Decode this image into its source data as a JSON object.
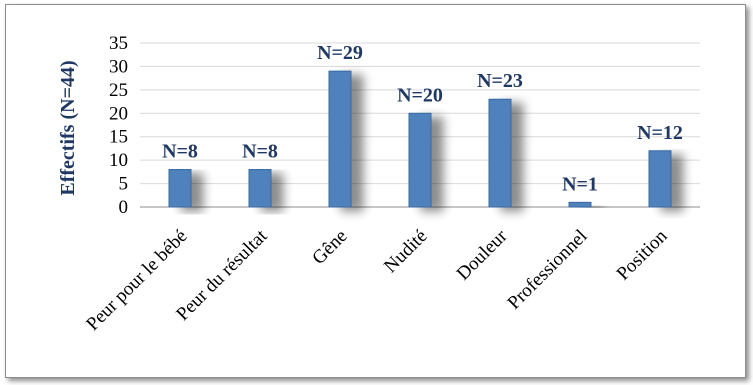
{
  "chart_data": {
    "type": "bar",
    "categories": [
      "Peur pour le bébé",
      "Peur du résultat",
      "Gêne",
      "Nudité",
      "Douleur",
      "Professionnel",
      "Position"
    ],
    "values": [
      8,
      8,
      29,
      20,
      23,
      1,
      12
    ],
    "data_labels": [
      "N=8",
      "N=8",
      "N=29",
      "N=20",
      "N=23",
      "N=1",
      "N=12"
    ],
    "title": "",
    "xlabel": "",
    "ylabel": "Effectifs (N=44)",
    "ylim": [
      0,
      35
    ],
    "yticks": [
      "0",
      "5",
      "10",
      "15",
      "20",
      "25",
      "30",
      "35"
    ],
    "grid": true,
    "legend": "none",
    "colors": {
      "bar": "#4f81bd",
      "bar_stroke": "#3a6aa3",
      "grid": "#d9d9d9",
      "label": "#1f3864"
    }
  }
}
